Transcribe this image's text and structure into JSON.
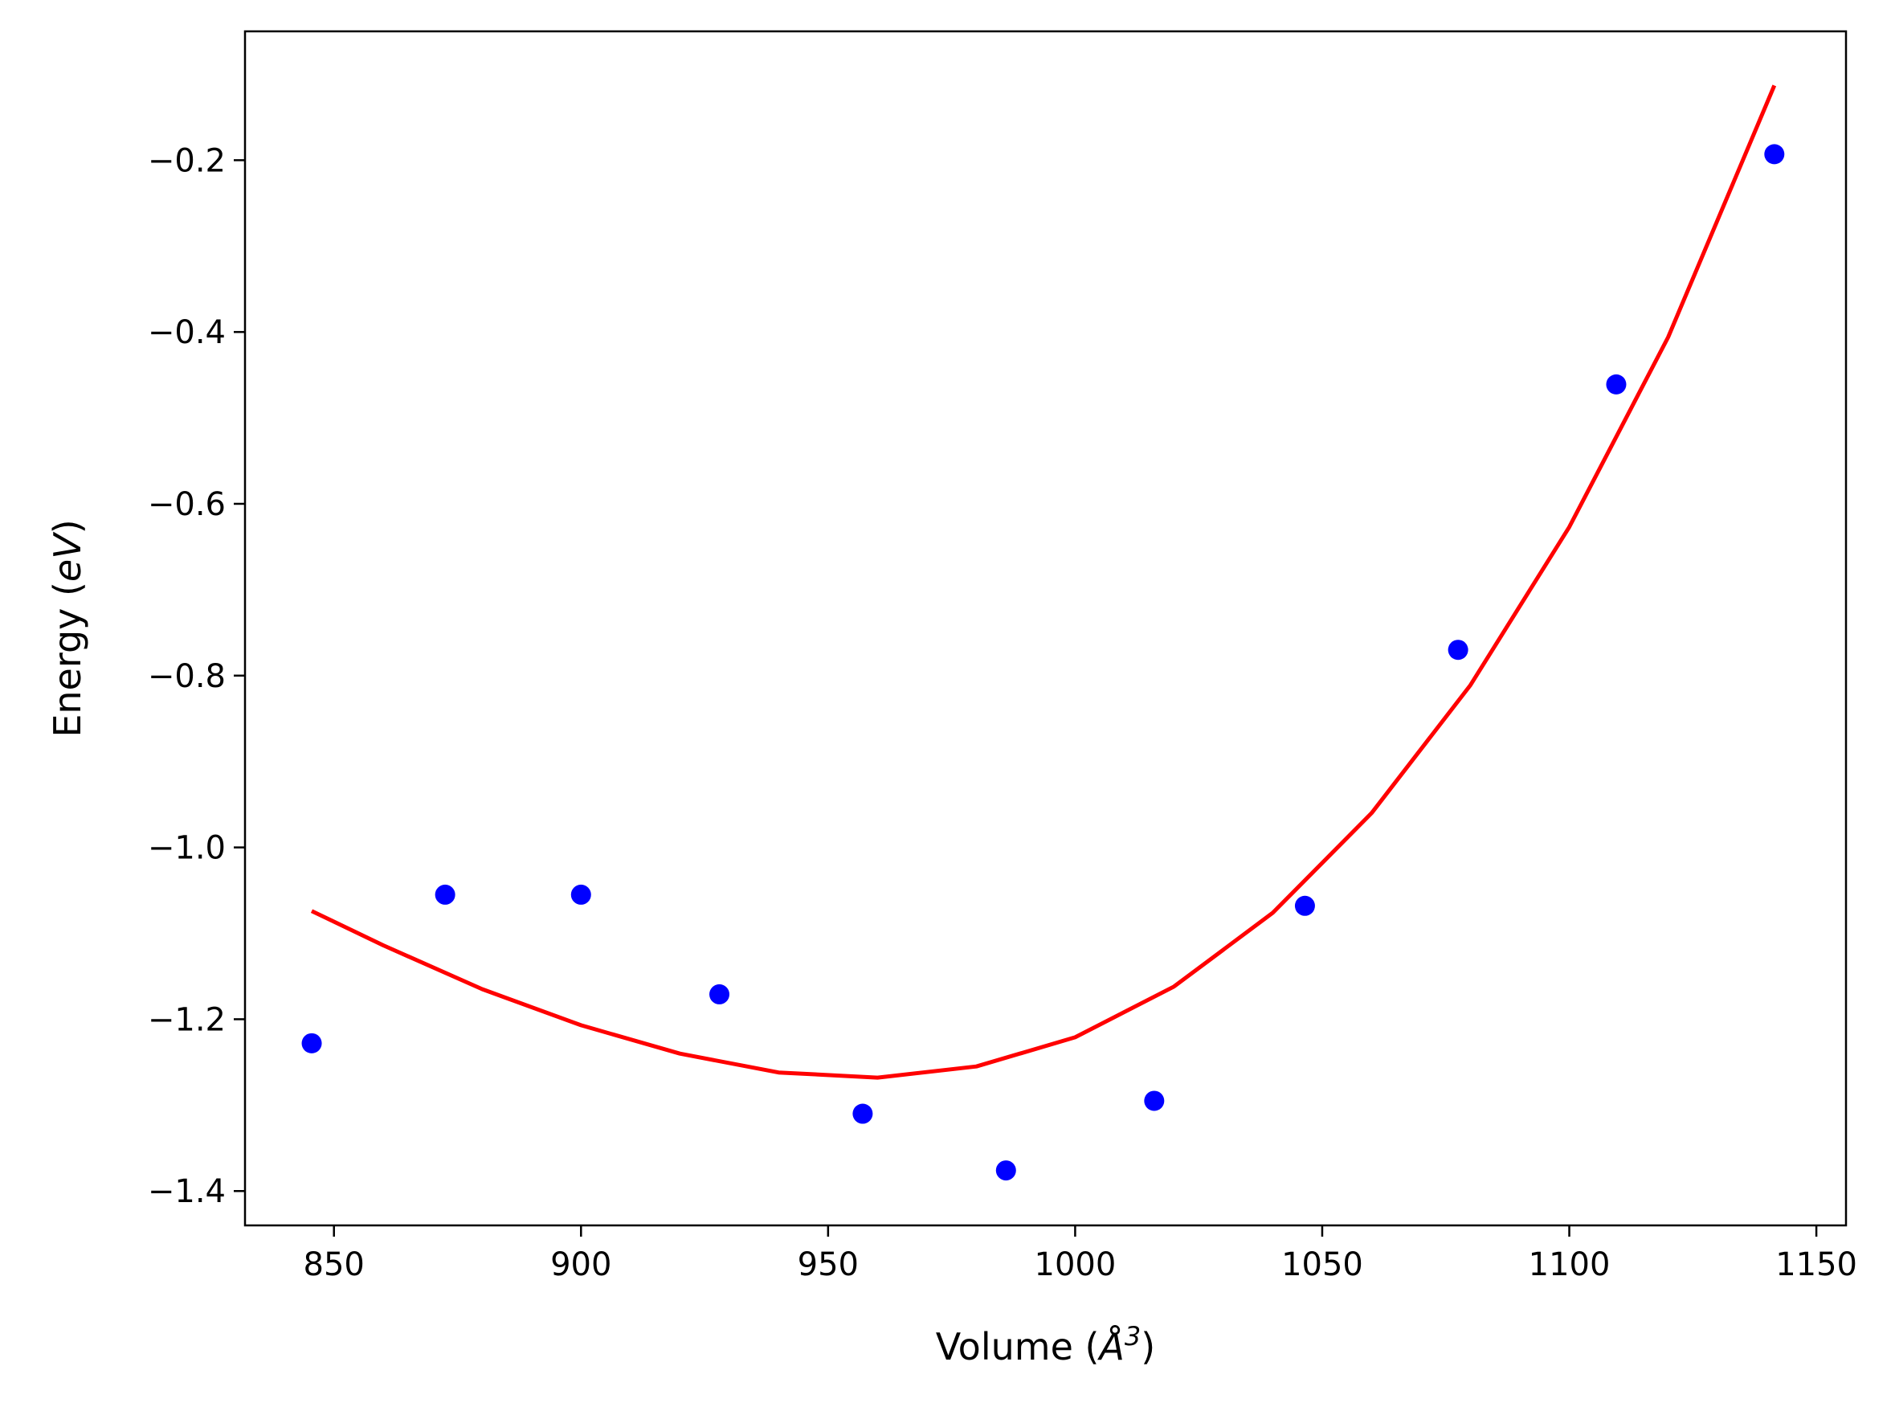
{
  "chart_data": {
    "type": "scatter",
    "title": "",
    "xlabel": "Volume ($\\AA^3$)",
    "xlabel_parts": {
      "prefix": "Volume (",
      "symbol": "Å",
      "superscript": "3",
      "suffix": ")"
    },
    "ylabel": "Energy ($eV$)",
    "ylabel_parts": {
      "prefix": "Energy (",
      "italic": "eV",
      "suffix": ")"
    },
    "xlim": [
      832,
      1156
    ],
    "ylim": [
      -1.44,
      -0.05
    ],
    "xticks": [
      850,
      900,
      950,
      1000,
      1050,
      1100,
      1150
    ],
    "yticks": [
      -1.4,
      -1.2,
      -1.0,
      -0.8,
      -0.6,
      -0.4,
      -0.2
    ],
    "xtick_labels": [
      "850",
      "900",
      "950",
      "1000",
      "1050",
      "1100",
      "1150"
    ],
    "ytick_labels": [
      "−1.4",
      "−1.2",
      "−1.0",
      "−0.8",
      "−0.6",
      "−0.4",
      "−0.2"
    ],
    "grid": false,
    "legend": "none",
    "series": [
      {
        "kind": "points",
        "color": "#0000ff",
        "x": [
          845.5,
          872.5,
          900,
          928,
          957,
          986,
          1016,
          1046.5,
          1077.5,
          1109.5,
          1141.5
        ],
        "y": [
          -1.228,
          -1.055,
          -1.055,
          -1.171,
          -1.31,
          -1.376,
          -1.295,
          -1.068,
          -0.77,
          -0.461,
          -0.193
        ]
      },
      {
        "kind": "line",
        "color": "#ff0000",
        "x": [
          845.5,
          860,
          880,
          900,
          920,
          940,
          960,
          980,
          1000,
          1020,
          1040,
          1060,
          1080,
          1100,
          1120,
          1141.5
        ],
        "y": [
          -1.074,
          -1.114,
          -1.165,
          -1.207,
          -1.24,
          -1.262,
          -1.268,
          -1.255,
          -1.221,
          -1.162,
          -1.076,
          -0.96,
          -0.811,
          -0.627,
          -0.406,
          -0.113
        ]
      }
    ]
  }
}
